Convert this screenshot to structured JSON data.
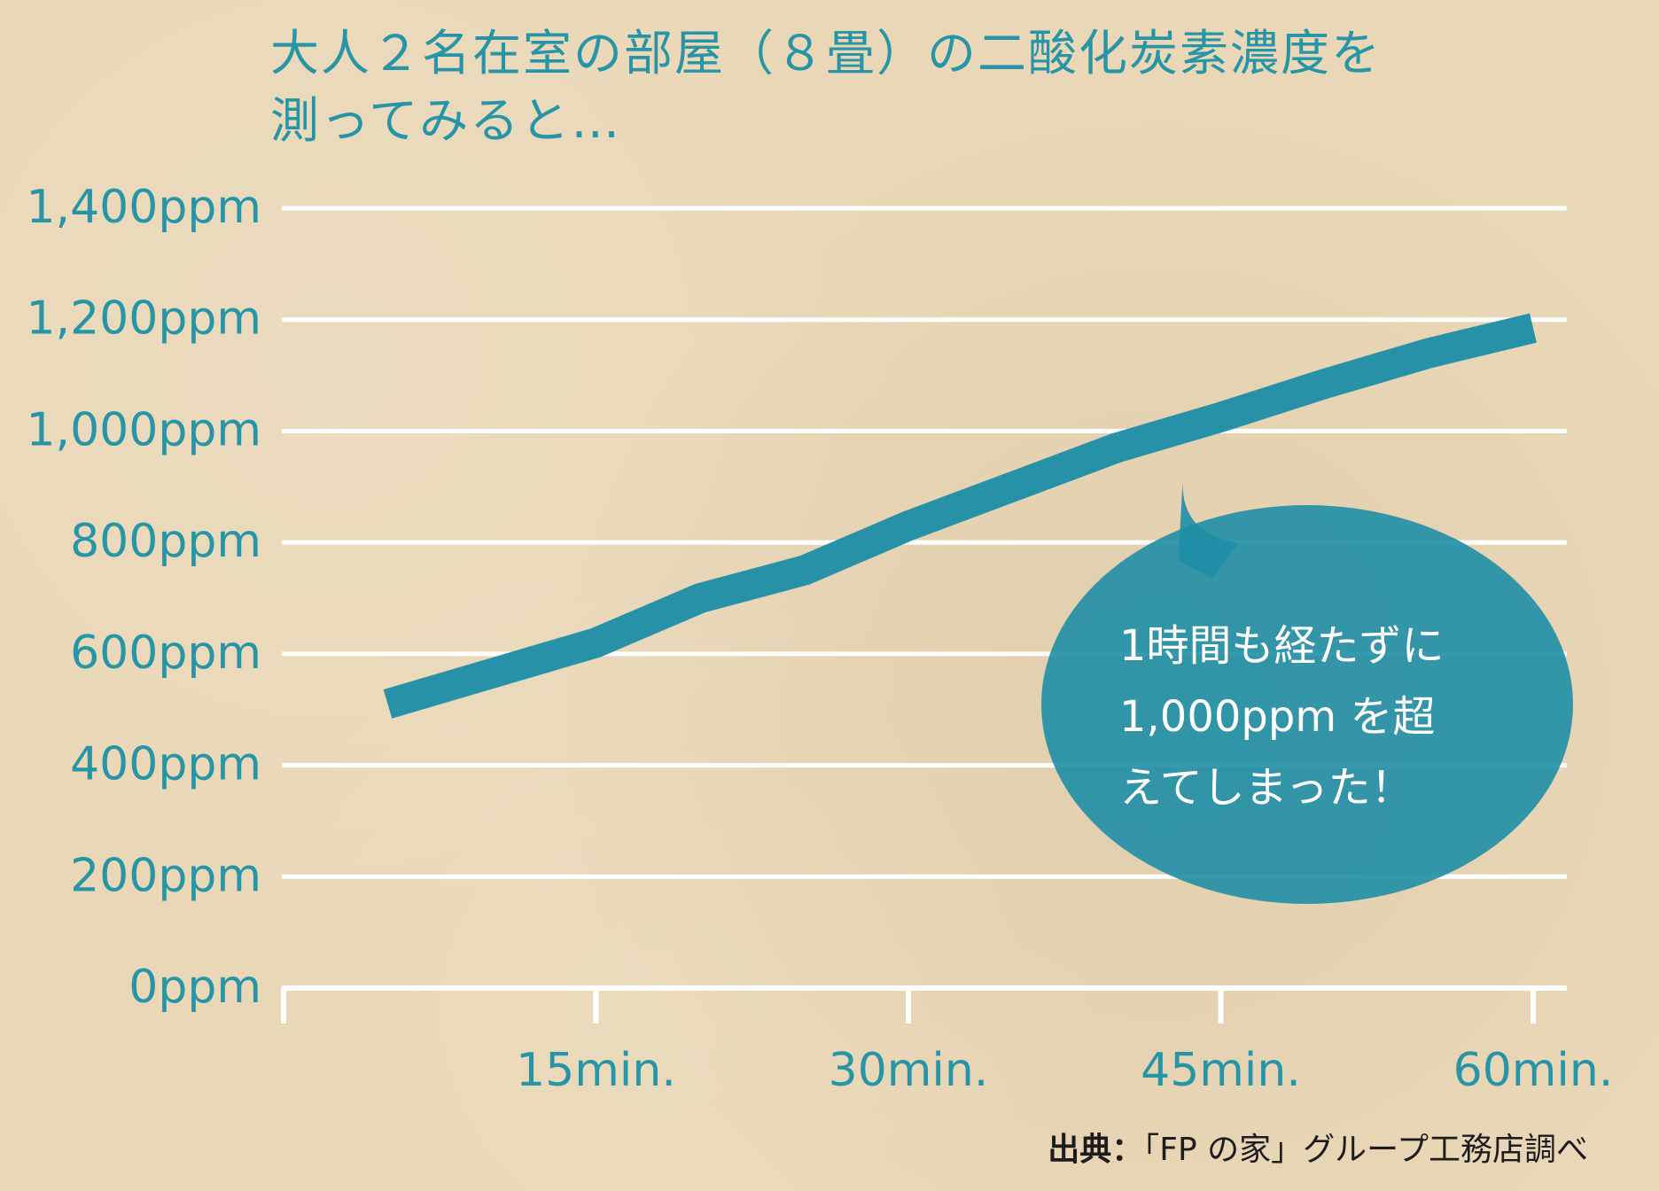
{
  "title_lines": [
    "大人２名在室の部屋（８畳）の二酸化炭素濃度を",
    "測ってみると…"
  ],
  "colors": {
    "accent": "#2795a6",
    "line": "#1f8ea6",
    "background": "#e9d7b7",
    "gridline": "#ffffff"
  },
  "chart_data": {
    "type": "line",
    "title": "大人２名在室の部屋（８畳）の二酸化炭素濃度を測ってみると…",
    "xlabel": "",
    "ylabel": "",
    "xlim": [
      0,
      60
    ],
    "ylim": [
      0,
      1400
    ],
    "x_ticks": [
      15,
      30,
      45,
      60
    ],
    "x_tick_labels": [
      "15min.",
      "30min.",
      "45min.",
      "60min."
    ],
    "y_ticks": [
      0,
      200,
      400,
      600,
      800,
      1000,
      1200,
      1400
    ],
    "y_tick_labels": [
      "0ppm",
      "200ppm",
      "400ppm",
      "600ppm",
      "800ppm",
      "1,000ppm",
      "1,200ppm",
      "1,400ppm"
    ],
    "grid": true,
    "series": [
      {
        "x": [
          5,
          15,
          20,
          25,
          30,
          35,
          40,
          45,
          50,
          55,
          60
        ],
        "y": [
          510,
          620,
          700,
          750,
          830,
          900,
          970,
          1025,
          1085,
          1140,
          1185
        ]
      }
    ],
    "annotation": {
      "lines": [
        "1時間も経たずに",
        "1,000ppm を超",
        "えてしまった！"
      ],
      "pointer_x": 43.3,
      "pointer_y": 990
    },
    "source_label": "出典：",
    "source_text": "「FP の家」グループ工務店調べ"
  }
}
